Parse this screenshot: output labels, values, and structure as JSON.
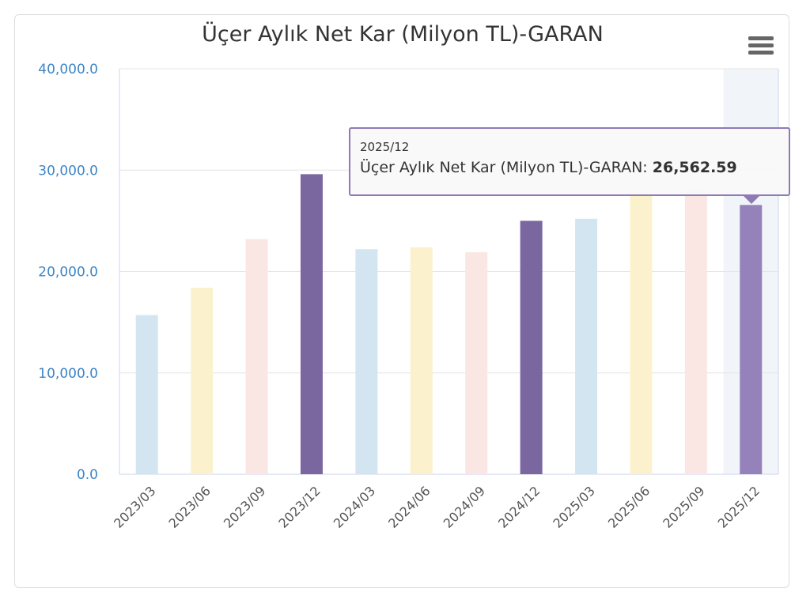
{
  "chart_data": {
    "type": "bar",
    "title": "Üçer Aylık Net Kar (Milyon TL)-GARAN",
    "categories": [
      "2023/03",
      "2023/06",
      "2023/09",
      "2023/12",
      "2024/03",
      "2024/06",
      "2024/09",
      "2024/12",
      "2025/03",
      "2025/06",
      "2025/09",
      "2025/12"
    ],
    "values": [
      15700,
      18400,
      23200,
      29600,
      22200,
      22400,
      21900,
      25000,
      25200,
      28000,
      28000,
      26562.59
    ],
    "colors": [
      "#d4e5f2",
      "#fbf2cd",
      "#fae7e4",
      "#7b67a0",
      "#d4e5f2",
      "#fbf2cd",
      "#fae7e4",
      "#7b67a0",
      "#d4e5f2",
      "#fbf2cd",
      "#fae7e4",
      "#9682bb"
    ],
    "ylim": [
      0,
      40000
    ],
    "yticks": [
      "0.0",
      "10,000.0",
      "20,000.0",
      "30,000.0",
      "40,000.0"
    ],
    "grid": true,
    "highlighted": "2025/12"
  },
  "tooltip": {
    "date": "2025/12",
    "label": "Üçer Aylık Net Kar (Milyon TL)-GARAN:",
    "value": "26,562.59"
  }
}
